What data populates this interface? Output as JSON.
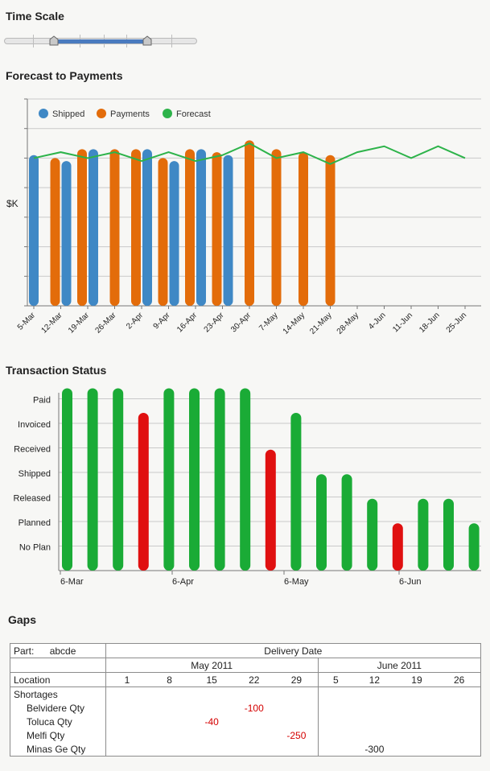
{
  "time_scale": {
    "title": "Time Scale",
    "range_start": 0.26,
    "range_end": 0.74
  },
  "forecast": {
    "title": "Forecast to Payments",
    "y_label": "$K",
    "legend": [
      {
        "label": "Shipped",
        "color": "#3f88c5"
      },
      {
        "label": "Payments",
        "color": "#e36c0a"
      },
      {
        "label": "Forecast",
        "color": "#2db34a"
      }
    ]
  },
  "transaction": {
    "title": "Transaction Status",
    "levels": [
      "Paid",
      "Invoiced",
      "Received",
      "Shipped",
      "Released",
      "Planned",
      "No Plan"
    ],
    "x_ticks": [
      "6-Mar",
      "6-Apr",
      "6-May",
      "6-Jun"
    ]
  },
  "gaps": {
    "title": "Gaps",
    "part_label": "Part:",
    "part_value": "abcde",
    "delivery_header": "Delivery Date",
    "months": [
      "May 2011",
      "June 2011"
    ],
    "location_label": "Location",
    "days": [
      "1",
      "8",
      "15",
      "22",
      "29",
      "5",
      "12",
      "19",
      "26"
    ],
    "shortages_label": "Shortages",
    "rows": [
      {
        "label": "Belvidere Qty",
        "values": [
          "",
          "",
          "",
          "-100",
          "",
          "",
          "",
          "",
          ""
        ]
      },
      {
        "label": "Toluca Qty",
        "values": [
          "",
          "",
          "-40",
          "",
          "",
          "",
          "",
          "",
          ""
        ]
      },
      {
        "label": "Melfi Qty",
        "values": [
          "",
          "",
          "",
          "",
          "-250",
          "",
          "",
          "",
          ""
        ]
      },
      {
        "label": "Minas Ge Qty",
        "values": [
          "",
          "",
          "",
          "",
          "",
          "",
          "-300",
          "",
          ""
        ]
      }
    ]
  },
  "chart_data": [
    {
      "type": "bar",
      "title": "Forecast to Payments",
      "ylabel": "$K",
      "ylim": [
        0,
        7
      ],
      "categories": [
        "5-Mar",
        "12-Mar",
        "19-Mar",
        "26-Mar",
        "2-Apr",
        "9-Apr",
        "16-Apr",
        "23-Apr",
        "30-Apr",
        "7-May",
        "14-May",
        "21-May",
        "28-May",
        "4-Jun",
        "11-Jun",
        "18-Jun",
        "25-Jun"
      ],
      "series": [
        {
          "name": "Shipped",
          "type": "bar",
          "values": [
            5.1,
            4.9,
            5.3,
            null,
            5.3,
            4.9,
            5.3,
            5.1,
            null,
            null,
            null,
            null,
            null,
            null,
            null,
            null,
            null
          ]
        },
        {
          "name": "Payments",
          "type": "bar",
          "values": [
            null,
            5.0,
            5.3,
            5.3,
            5.3,
            5.0,
            5.3,
            5.2,
            5.6,
            5.3,
            5.2,
            5.1,
            null,
            null,
            null,
            null,
            null
          ]
        },
        {
          "name": "Forecast",
          "type": "line",
          "values": [
            5.0,
            5.2,
            5.0,
            5.2,
            4.9,
            5.2,
            4.9,
            5.1,
            5.5,
            5.0,
            5.2,
            4.8,
            5.2,
            5.4,
            5.0,
            5.4,
            5.0
          ]
        }
      ]
    },
    {
      "type": "bar",
      "title": "Transaction Status",
      "levels": [
        "No Plan",
        "Planned",
        "Released",
        "Shipped",
        "Received",
        "Invoiced",
        "Paid"
      ],
      "x_ticks": [
        "6-Mar",
        "6-Apr",
        "6-May",
        "6-Jun"
      ],
      "bars": [
        {
          "level": 7,
          "color": "#1aab36"
        },
        {
          "level": 7,
          "color": "#1aab36"
        },
        {
          "level": 7,
          "color": "#1aab36"
        },
        {
          "level": 6,
          "color": "#e01010"
        },
        {
          "level": 7,
          "color": "#1aab36"
        },
        {
          "level": 7,
          "color": "#1aab36"
        },
        {
          "level": 7,
          "color": "#1aab36"
        },
        {
          "level": 7,
          "color": "#1aab36"
        },
        {
          "level": 4.5,
          "color": "#e01010"
        },
        {
          "level": 6,
          "color": "#1aab36"
        },
        {
          "level": 3.5,
          "color": "#1aab36"
        },
        {
          "level": 3.5,
          "color": "#1aab36"
        },
        {
          "level": 2.5,
          "color": "#1aab36"
        },
        {
          "level": 1.5,
          "color": "#e01010"
        },
        {
          "level": 2.5,
          "color": "#1aab36"
        },
        {
          "level": 2.5,
          "color": "#1aab36"
        },
        {
          "level": 1.5,
          "color": "#1aab36"
        }
      ]
    }
  ]
}
